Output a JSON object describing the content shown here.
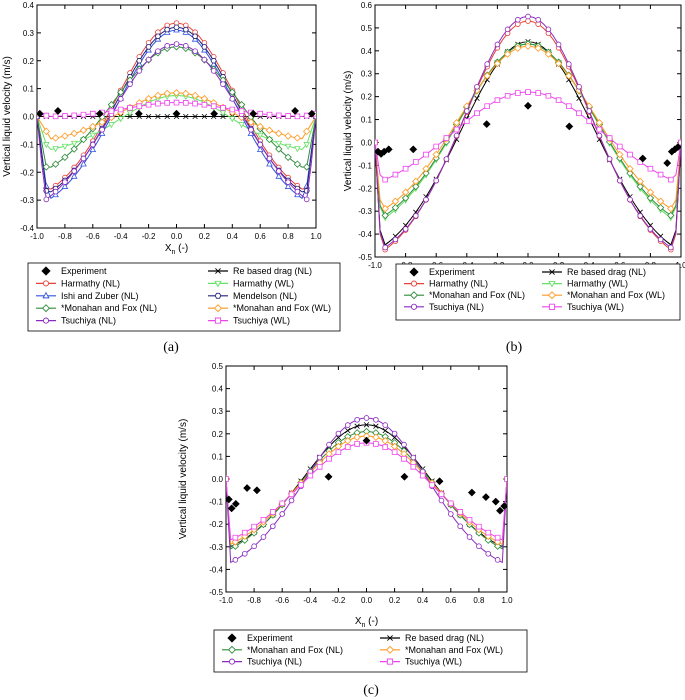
{
  "figure": {
    "labels": [
      "(a)",
      "(b)",
      "(c)"
    ]
  },
  "colors": {
    "experiment": "#000000",
    "re_based": "#000000",
    "harmathy_nl": "#e8403a",
    "harmathy_wl": "#66e066",
    "ishi_zuber_nl": "#3355dd",
    "mendelson_nl": "#22227a",
    "monahan_fox_nl": "#2e8b3a",
    "monahan_fox_wl": "#ff9922",
    "tsuchiya_nl": "#8a2bbf",
    "tsuchiya_wl": "#ee44ee"
  },
  "chart_data": [
    {
      "type": "line",
      "panel": "(a)",
      "xlabel": "X",
      "xlabel_sub": "n",
      "xlabel_suffix": " (-)",
      "ylabel": "Vertical liquid velocity (m/s)",
      "xlim": [
        -1.0,
        1.0
      ],
      "ylim": [
        -0.4,
        0.4
      ],
      "xticks": [
        -1.0,
        -0.8,
        -0.6,
        -0.4,
        -0.2,
        0.0,
        0.2,
        0.4,
        0.6,
        0.8,
        1.0
      ],
      "xtick_labels": [
        "-1.0",
        "-0.8",
        "-0.6",
        "-0.4",
        "-0.2",
        "0.0",
        "0.2",
        "0.4",
        "0.6",
        "0.8",
        "1.0"
      ],
      "yticks": [
        -0.4,
        -0.3,
        -0.2,
        -0.1,
        0.0,
        0.1,
        0.2,
        0.3,
        0.4
      ],
      "ytick_labels": [
        "-0.4",
        "-0.3",
        "-0.2",
        "-0.1",
        "0.0",
        "0.1",
        "0.2",
        "0.3",
        "0.4"
      ],
      "legend": [
        [
          "Experiment",
          "Re based drag (NL)"
        ],
        [
          "Harmathy (NL)",
          "Harmathy (WL)"
        ],
        [
          "Ishi and Zuber (NL)",
          "Mendelson (NL)"
        ],
        [
          "*Monahan and Fox (NL)",
          "*Monahan and Fox (WL)"
        ],
        [
          "Tsuchiya (NL)",
          "Tsuchiya (WL)"
        ]
      ],
      "experiment": {
        "name": "Experiment",
        "x": [
          -0.98,
          -0.85,
          -0.55,
          -0.27,
          0.0,
          0.27,
          0.55,
          0.85,
          0.97
        ],
        "y": [
          0.01,
          0.02,
          0.01,
          0.01,
          0.01,
          0.01,
          0.01,
          0.02,
          0.01
        ]
      },
      "series": [
        {
          "name": "Re based drag (NL)",
          "key": "re_based",
          "marker": "x",
          "peak": 0.0,
          "trough": 0.0,
          "xmin": -0.95,
          "width": 0.1,
          "near_wall": 0.0
        },
        {
          "name": "Harmathy (NL)",
          "key": "harmathy_nl",
          "marker": "circle",
          "peak": 0.335,
          "trough": -0.27,
          "xmin": -0.93,
          "width": 0.42,
          "near_wall": 0.0
        },
        {
          "name": "Harmathy (WL)",
          "key": "harmathy_wl",
          "marker": "tri-down",
          "peak": 0.075,
          "trough": -0.12,
          "xmin": -0.92,
          "width": 0.4,
          "near_wall": 0.0
        },
        {
          "name": "Ishi and Zuber (NL)",
          "key": "ishi_zuber_nl",
          "marker": "tri-up",
          "peak": 0.31,
          "trough": -0.3,
          "xmin": -0.92,
          "width": 0.42,
          "near_wall": 0.0
        },
        {
          "name": "Mendelson (NL)",
          "key": "mendelson_nl",
          "marker": "hex",
          "peak": 0.32,
          "trough": -0.28,
          "xmin": -0.93,
          "width": 0.42,
          "near_wall": 0.0
        },
        {
          "name": "*Monahan and Fox (NL)",
          "key": "monahan_fox_nl",
          "marker": "diamond",
          "peak": 0.25,
          "trough": -0.19,
          "xmin": -0.93,
          "width": 0.45,
          "near_wall": 0.0
        },
        {
          "name": "*Monahan and Fox (WL)",
          "key": "monahan_fox_wl",
          "marker": "diamond",
          "peak": 0.085,
          "trough": -0.08,
          "xmin": -0.9,
          "width": 0.4,
          "near_wall": 0.0
        },
        {
          "name": "Tsuchiya (NL)",
          "key": "tsuchiya_nl",
          "marker": "circle",
          "peak": 0.26,
          "trough": -0.3,
          "xmin": -0.94,
          "width": 0.47,
          "near_wall": 0.0
        },
        {
          "name": "Tsuchiya (WL)",
          "key": "tsuchiya_wl",
          "marker": "square",
          "peak": 0.05,
          "trough": 0.0,
          "xmin": -0.9,
          "width": 0.35,
          "near_wall": 0.01
        }
      ]
    },
    {
      "type": "line",
      "panel": "(b)",
      "xlabel": "X",
      "xlabel_sub": "n",
      "xlabel_suffix": " (-)",
      "ylabel": "Vertical liquid velocity (m/s)",
      "xlim": [
        -1.0,
        1.0
      ],
      "ylim": [
        -0.5,
        0.6
      ],
      "xticks": [
        -1.0,
        -0.8,
        -0.6,
        -0.4,
        -0.2,
        0.0,
        0.2,
        0.4,
        0.6,
        0.8,
        1.0
      ],
      "xtick_labels": [
        "-1.0",
        "-0.8",
        "-0.6",
        "-0.4",
        "-0.2",
        "0.0",
        "0.2",
        "0.4",
        "0.6",
        "0.8",
        "1.0"
      ],
      "yticks": [
        -0.5,
        -0.4,
        -0.3,
        -0.2,
        -0.1,
        0.0,
        0.1,
        0.2,
        0.3,
        0.4,
        0.5,
        0.6
      ],
      "ytick_labels": [
        "-0.5",
        "-0.4",
        "-0.3",
        "-0.2",
        "-0.1",
        "0.0",
        "0.1",
        "0.2",
        "0.3",
        "0.4",
        "0.5",
        "0.6"
      ],
      "legend": [
        [
          "Experiment",
          "Re based drag (NL)"
        ],
        [
          "Harmathy (NL)",
          "Harmathy (WL)"
        ],
        [
          "*Monahan and Fox (NL)",
          "*Monahan and Fox (WL)"
        ],
        [
          "Tsuchiya (NL)",
          "Tsuchiya (WL)"
        ]
      ],
      "experiment": {
        "name": "Experiment",
        "x": [
          -0.98,
          -0.96,
          -0.94,
          -0.91,
          -0.75,
          -0.27,
          0.0,
          0.27,
          0.75,
          0.91,
          0.94,
          0.96,
          0.98
        ],
        "y": [
          -0.04,
          -0.05,
          -0.04,
          -0.03,
          -0.03,
          0.08,
          0.16,
          0.07,
          -0.07,
          -0.09,
          -0.04,
          -0.03,
          -0.02
        ]
      },
      "series": [
        {
          "name": "Re based drag (NL)",
          "key": "re_based",
          "marker": "x",
          "peak": 0.44,
          "trough": -0.46,
          "xmin": -0.96,
          "width": 0.44,
          "near_wall": 0.0
        },
        {
          "name": "Harmathy (NL)",
          "key": "harmathy_nl",
          "marker": "circle",
          "peak": 0.53,
          "trough": -0.48,
          "xmin": -0.96,
          "width": 0.42,
          "near_wall": 0.0
        },
        {
          "name": "Harmathy (WL)",
          "key": "harmathy_wl",
          "marker": "tri-down",
          "peak": 0.43,
          "trough": -0.34,
          "xmin": -0.96,
          "width": 0.45,
          "near_wall": 0.0
        },
        {
          "name": "*Monahan and Fox (NL)",
          "key": "monahan_fox_nl",
          "marker": "diamond",
          "peak": 0.43,
          "trough": -0.33,
          "xmin": -0.96,
          "width": 0.45,
          "near_wall": 0.0
        },
        {
          "name": "*Monahan and Fox (WL)",
          "key": "monahan_fox_wl",
          "marker": "diamond",
          "peak": 0.42,
          "trough": -0.3,
          "xmin": -0.96,
          "width": 0.45,
          "near_wall": 0.0
        },
        {
          "name": "Tsuchiya (NL)",
          "key": "tsuchiya_nl",
          "marker": "circle",
          "peak": 0.55,
          "trough": -0.47,
          "xmin": -0.96,
          "width": 0.41,
          "near_wall": 0.0
        },
        {
          "name": "Tsuchiya (WL)",
          "key": "tsuchiya_wl",
          "marker": "square",
          "peak": 0.22,
          "trough": -0.17,
          "xmin": -0.96,
          "width": 0.5,
          "near_wall": 0.0
        }
      ]
    },
    {
      "type": "line",
      "panel": "(c)",
      "xlabel": "X",
      "xlabel_sub": "n",
      "xlabel_suffix": " (-)",
      "ylabel": "Vertical liquid velocity (m/s)",
      "xlim": [
        -1.0,
        1.0
      ],
      "ylim": [
        -0.5,
        0.5
      ],
      "xticks": [
        -1.0,
        -0.8,
        -0.6,
        -0.4,
        -0.2,
        0.0,
        0.2,
        0.4,
        0.6,
        0.8,
        1.0
      ],
      "xtick_labels": [
        "-1.0",
        "-0.8",
        "-0.6",
        "-0.4",
        "-0.2",
        "0.0",
        "0.2",
        "0.4",
        "0.6",
        "0.8",
        "1.0"
      ],
      "yticks": [
        -0.5,
        -0.4,
        -0.3,
        -0.2,
        -0.1,
        0.0,
        0.1,
        0.2,
        0.3,
        0.4,
        0.5
      ],
      "ytick_labels": [
        "-0.5",
        "-0.4",
        "-0.3",
        "-0.2",
        "-0.1",
        "0.0",
        "0.1",
        "0.2",
        "0.3",
        "0.4",
        "0.5"
      ],
      "legend": [
        [
          "Experiment",
          "Re based drag (NL)"
        ],
        [
          "*Monahan and Fox (NL)",
          "*Monahan and Fox (WL)"
        ],
        [
          "Tsuchiya (NL)",
          "Tsuchiya (WL)"
        ]
      ],
      "experiment": {
        "name": "Experiment",
        "x": [
          -0.98,
          -0.96,
          -0.93,
          -0.85,
          -0.78,
          -0.27,
          0.0,
          0.27,
          0.52,
          0.75,
          0.85,
          0.92,
          0.95,
          0.98
        ],
        "y": [
          -0.09,
          -0.13,
          -0.11,
          -0.04,
          -0.05,
          0.01,
          0.17,
          0.01,
          -0.01,
          -0.06,
          -0.08,
          -0.1,
          -0.14,
          -0.12
        ]
      },
      "series": [
        {
          "name": "Re based drag (NL)",
          "key": "re_based",
          "marker": "x",
          "peak": 0.24,
          "trough": -0.3,
          "xmin": -0.97,
          "width": 0.45,
          "near_wall": 0.0
        },
        {
          "name": "*Monahan and Fox (NL)",
          "key": "monahan_fox_nl",
          "marker": "diamond",
          "peak": 0.21,
          "trough": -0.31,
          "xmin": -0.97,
          "width": 0.48,
          "near_wall": 0.0
        },
        {
          "name": "*Monahan and Fox (WL)",
          "key": "monahan_fox_wl",
          "marker": "diamond",
          "peak": 0.19,
          "trough": -0.29,
          "xmin": -0.97,
          "width": 0.48,
          "near_wall": 0.0
        },
        {
          "name": "Tsuchiya (NL)",
          "key": "tsuchiya_nl",
          "marker": "circle",
          "peak": 0.27,
          "trough": -0.37,
          "xmin": -0.97,
          "width": 0.44,
          "near_wall": 0.0
        },
        {
          "name": "Tsuchiya (WL)",
          "key": "tsuchiya_wl",
          "marker": "square",
          "peak": 0.16,
          "trough": -0.27,
          "xmin": -0.97,
          "width": 0.48,
          "near_wall": 0.0
        }
      ]
    }
  ]
}
